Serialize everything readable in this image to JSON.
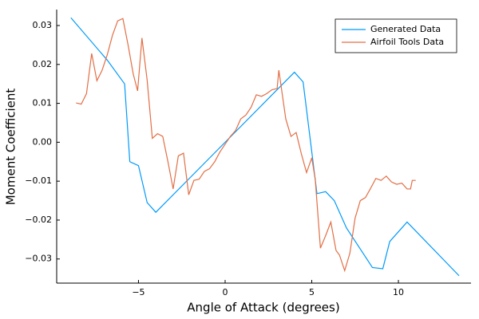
{
  "chart_data": {
    "type": "line",
    "xlabel": "Angle of Attack (degrees)",
    "ylabel": "Moment Coefficient",
    "xlim": [
      -9.72,
      14.19
    ],
    "ylim": [
      -0.0362,
      0.0341
    ],
    "xticks": [
      {
        "value": -5,
        "label": "−5"
      },
      0,
      5,
      10
    ],
    "yticks": [
      {
        "value": -0.03,
        "label": "−0.03"
      },
      {
        "value": -0.02,
        "label": "−0.02"
      },
      {
        "value": -0.01,
        "label": "−0.01"
      },
      {
        "value": 0,
        "label": "0.00"
      },
      0.01,
      0.02,
      0.03
    ],
    "grid": false,
    "legend": "top-right",
    "series": [
      {
        "name": "Generated Data",
        "color": "#009af9",
        "x": [
          -8.9,
          -6.8,
          -5.8,
          -5.5,
          -5.0,
          -4.5,
          -4.0,
          4.0,
          4.5,
          5.3,
          5.8,
          6.3,
          7.0,
          8.5,
          9.1,
          9.5,
          10.5,
          13.5
        ],
        "values": [
          0.032,
          0.0211,
          0.015,
          -0.005,
          -0.006,
          -0.0155,
          -0.018,
          0.018,
          0.0155,
          -0.0132,
          -0.0127,
          -0.015,
          -0.022,
          -0.0322,
          -0.0325,
          -0.0255,
          -0.0205,
          -0.0343
        ]
      },
      {
        "name": "Airfoil Tools Data",
        "color": "#e26f46",
        "x": [
          -8.6,
          -8.3,
          -8.0,
          -7.7,
          -7.4,
          -7.1,
          -6.8,
          -6.5,
          -6.2,
          -5.9,
          -5.6,
          -5.3,
          -5.05,
          -4.8,
          -4.5,
          -4.2,
          -3.9,
          -3.6,
          -3.3,
          -3.0,
          -2.7,
          -2.4,
          -2.1,
          -1.8,
          -1.5,
          -1.2,
          -0.9,
          -0.6,
          -0.3,
          0,
          0.3,
          0.6,
          0.9,
          1.2,
          1.5,
          1.8,
          2.1,
          2.4,
          2.7,
          3.0,
          3.1,
          3.5,
          3.8,
          4.1,
          4.4,
          4.7,
          5.0,
          5.2,
          5.5,
          5.8,
          6.1,
          6.4,
          6.6,
          6.9,
          7.2,
          7.5,
          7.8,
          8.1,
          8.4,
          8.7,
          9.0,
          9.3,
          9.6,
          9.9,
          10.2,
          10.5,
          10.7,
          10.8,
          11.0
        ],
        "values": [
          0.0101,
          0.0098,
          0.0125,
          0.0228,
          0.0158,
          0.0185,
          0.0225,
          0.0275,
          0.0312,
          0.0318,
          0.025,
          0.0175,
          0.0132,
          0.0268,
          0.016,
          0.001,
          0.0022,
          0.0015,
          -0.005,
          -0.012,
          -0.0035,
          -0.0028,
          -0.0135,
          -0.0098,
          -0.0095,
          -0.0075,
          -0.0068,
          -0.005,
          -0.0025,
          -0.0005,
          0.0015,
          0.003,
          0.006,
          0.007,
          0.009,
          0.0122,
          0.0118,
          0.0125,
          0.0135,
          0.0138,
          0.0185,
          0.006,
          0.0015,
          0.0025,
          -0.003,
          -0.0078,
          -0.004,
          -0.0095,
          -0.0272,
          -0.024,
          -0.0205,
          -0.0278,
          -0.029,
          -0.033,
          -0.0285,
          -0.0195,
          -0.015,
          -0.0142,
          -0.0118,
          -0.0093,
          -0.0098,
          -0.0087,
          -0.0102,
          -0.0108,
          -0.0105,
          -0.012,
          -0.012,
          -0.0098,
          -0.0098
        ]
      }
    ]
  }
}
